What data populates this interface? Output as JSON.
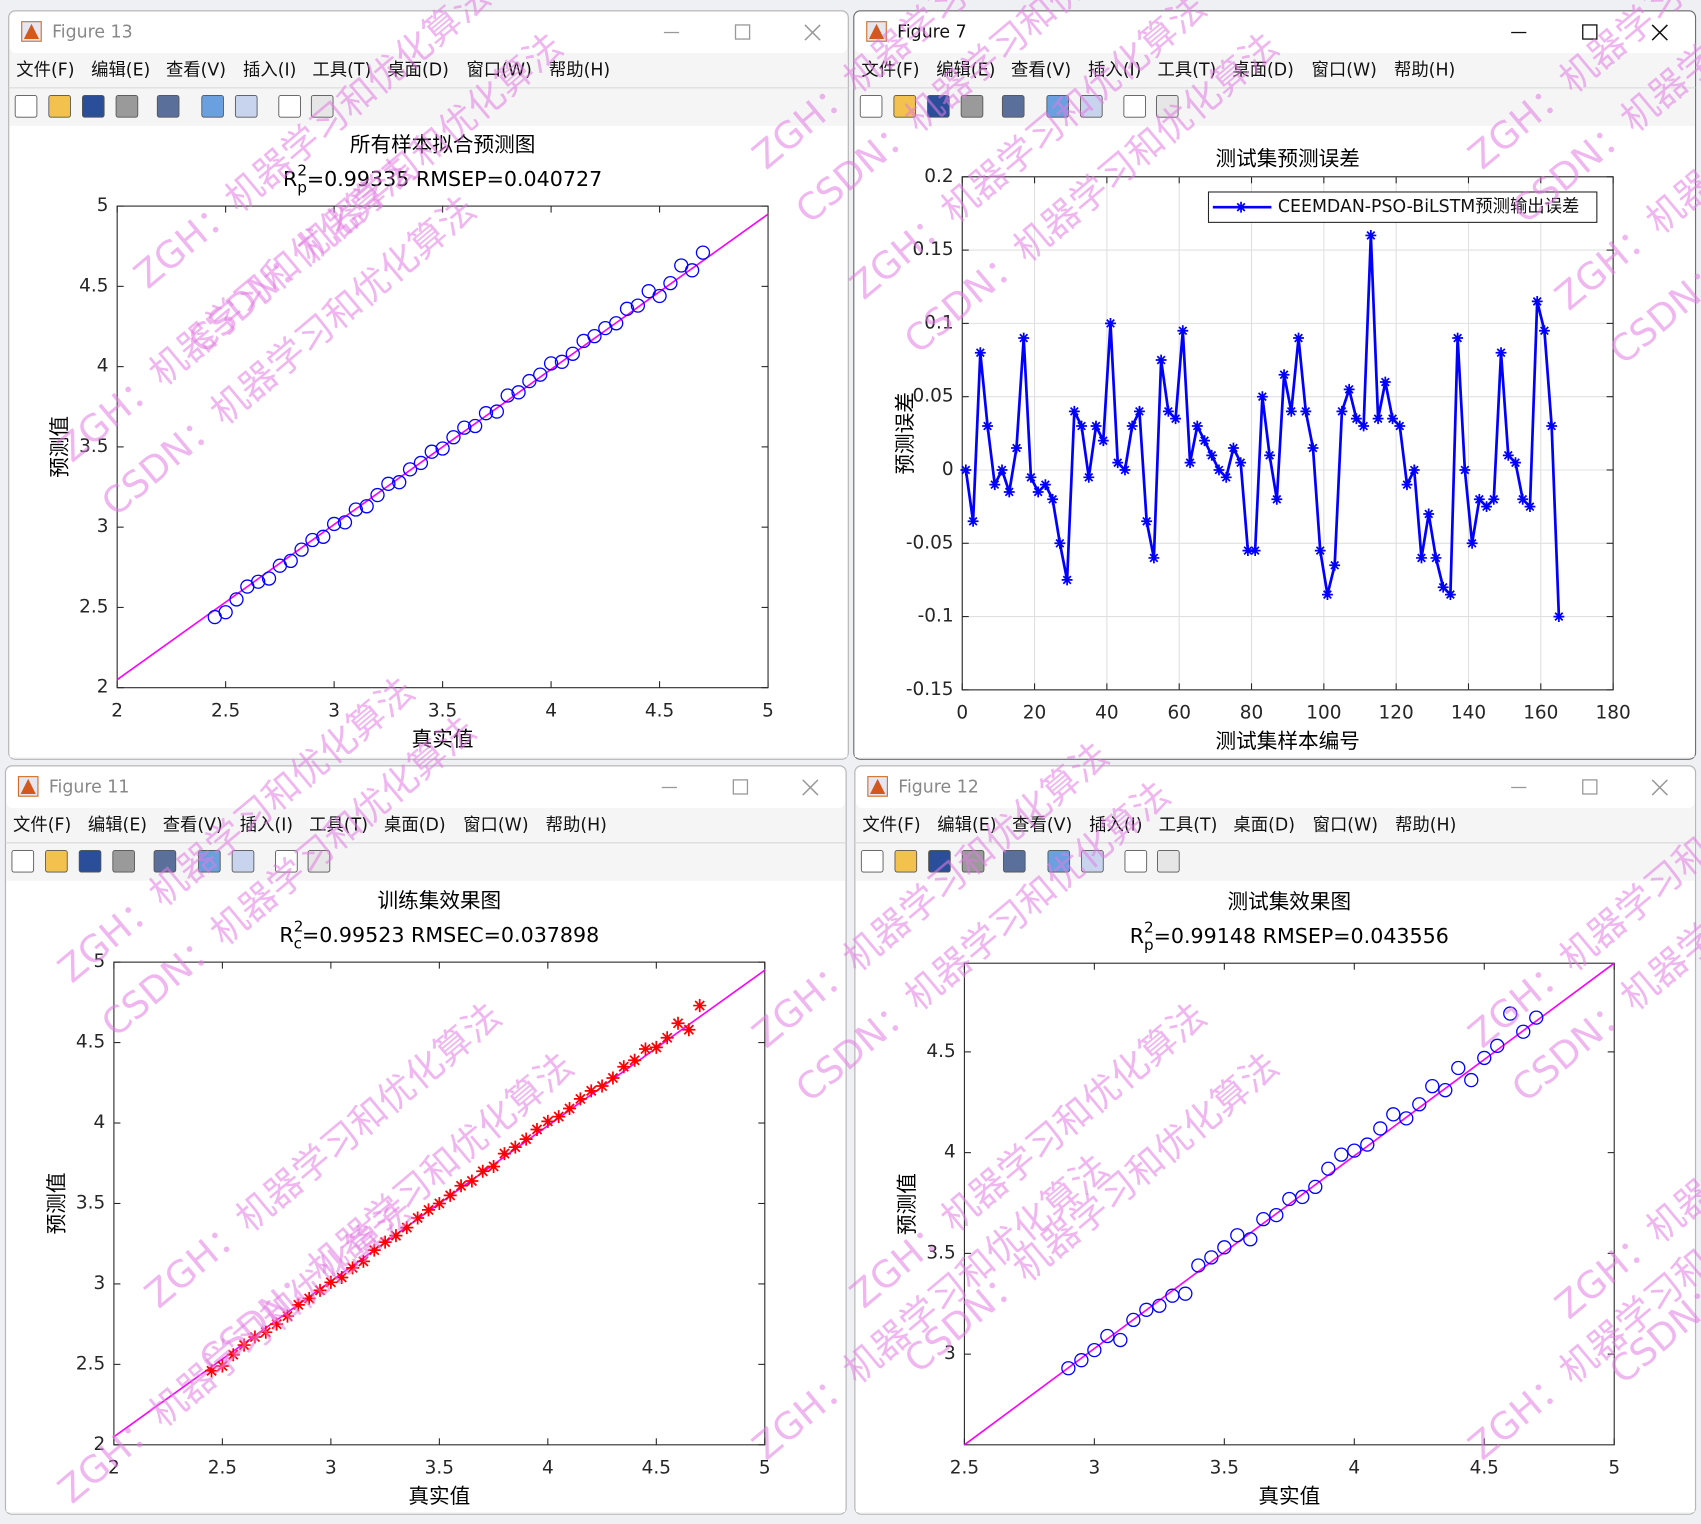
{
  "windows": [
    {
      "title": "Figure 13",
      "active": false
    },
    {
      "title": "Figure 7",
      "active": true
    },
    {
      "title": "Figure 11",
      "active": false
    },
    {
      "title": "Figure 12",
      "active": false
    }
  ],
  "menu": [
    "文件(F)",
    "编辑(E)",
    "查看(V)",
    "插入(I)",
    "工具(T)",
    "桌面(D)",
    "窗口(W)",
    "帮助(H)"
  ],
  "watermarks": [
    "ZGH：机器学习和优化算法",
    "CSDN：机器学习和优化算法"
  ],
  "chart_data": [
    {
      "type": "scatter",
      "title": "所有样本拟合预测图",
      "subtitle": {
        "base": "R",
        "sup": "2",
        "sub": "p",
        "rest": "=0.99335  RMSEP=0.040727"
      },
      "xlabel": "真实值",
      "ylabel": "预测值",
      "xlim": [
        2,
        5
      ],
      "ylim": [
        2,
        5
      ],
      "xticks": [
        2,
        2.5,
        3,
        3.5,
        4,
        4.5,
        5
      ],
      "yticks": [
        2,
        2.5,
        3,
        3.5,
        4,
        4.5,
        5
      ],
      "marker": "o",
      "color": "#0000ff",
      "x": [
        2.45,
        2.5,
        2.55,
        2.6,
        2.65,
        2.7,
        2.75,
        2.8,
        2.85,
        2.9,
        2.95,
        3.0,
        3.05,
        3.1,
        3.15,
        3.2,
        3.25,
        3.3,
        3.35,
        3.4,
        3.45,
        3.5,
        3.55,
        3.6,
        3.65,
        3.7,
        3.75,
        3.8,
        3.85,
        3.9,
        3.95,
        4.0,
        4.05,
        4.1,
        4.15,
        4.2,
        4.25,
        4.3,
        4.35,
        4.4,
        4.45,
        4.5,
        4.55,
        4.6,
        4.65,
        4.7
      ],
      "y": [
        2.44,
        2.47,
        2.55,
        2.63,
        2.66,
        2.68,
        2.76,
        2.79,
        2.86,
        2.92,
        2.94,
        3.02,
        3.03,
        3.11,
        3.13,
        3.2,
        3.27,
        3.28,
        3.36,
        3.4,
        3.47,
        3.49,
        3.56,
        3.62,
        3.63,
        3.71,
        3.72,
        3.82,
        3.84,
        3.91,
        3.95,
        4.02,
        4.03,
        4.08,
        4.16,
        4.19,
        4.24,
        4.27,
        4.36,
        4.38,
        4.47,
        4.44,
        4.52,
        4.63,
        4.6,
        4.71
      ],
      "fit_line": {
        "x": [
          2,
          5
        ],
        "y": [
          2.05,
          4.95
        ],
        "color": "#ff00ff"
      }
    },
    {
      "type": "line",
      "title": "测试集预测误差",
      "xlabel": "测试集样本编号",
      "ylabel": "预测误差",
      "xlim": [
        0,
        180
      ],
      "ylim": [
        -0.15,
        0.2
      ],
      "xticks": [
        0,
        20,
        40,
        60,
        80,
        100,
        120,
        140,
        160,
        180
      ],
      "yticks": [
        -0.15,
        -0.1,
        -0.05,
        0,
        0.05,
        0.1,
        0.15,
        0.2
      ],
      "grid": true,
      "legend": "upper right",
      "x": [
        1,
        3,
        5,
        7,
        9,
        11,
        13,
        15,
        17,
        19,
        21,
        23,
        25,
        27,
        29,
        31,
        33,
        35,
        37,
        39,
        41,
        43,
        45,
        47,
        49,
        51,
        53,
        55,
        57,
        59,
        61,
        63,
        65,
        67,
        69,
        71,
        73,
        75,
        77,
        79,
        81,
        83,
        85,
        87,
        89,
        91,
        93,
        95,
        97,
        99,
        101,
        103,
        105,
        107,
        109,
        111,
        113,
        115,
        117,
        119,
        121,
        123,
        125,
        127,
        129,
        131,
        133,
        135,
        137,
        139,
        141,
        143,
        145,
        147,
        149,
        151,
        153,
        155,
        157,
        159,
        161,
        163,
        165
      ],
      "series": [
        {
          "name": "CEEMDAN-PSO-BiLSTM预测输出误差",
          "color": "#0000ff",
          "marker": "*",
          "values": [
            0,
            -0.035,
            0.08,
            0.03,
            -0.01,
            0,
            -0.015,
            0.015,
            0.09,
            -0.005,
            -0.015,
            -0.01,
            -0.02,
            -0.05,
            -0.075,
            0.04,
            0.03,
            -0.005,
            0.03,
            0.02,
            0.1,
            0.005,
            0,
            0.03,
            0.04,
            -0.035,
            -0.06,
            0.075,
            0.04,
            0.035,
            0.095,
            0.005,
            0.03,
            0.02,
            0.01,
            0,
            -0.005,
            0.015,
            0.005,
            -0.055,
            -0.055,
            0.05,
            0.01,
            -0.02,
            0.065,
            0.04,
            0.09,
            0.04,
            0.015,
            -0.055,
            -0.085,
            -0.065,
            0.04,
            0.055,
            0.035,
            0.03,
            0.16,
            0.035,
            0.06,
            0.035,
            0.03,
            -0.01,
            0,
            -0.06,
            -0.03,
            -0.06,
            -0.08,
            -0.085,
            0.09,
            0,
            -0.05,
            -0.02,
            -0.025,
            -0.02,
            0.08,
            0.01,
            0.005,
            -0.02,
            -0.025,
            0.115,
            0.095,
            0.03,
            -0.1
          ]
        }
      ]
    },
    {
      "type": "scatter",
      "title": "训练集效果图",
      "subtitle": {
        "base": "R",
        "sup": "2",
        "sub": "c",
        "rest": "=0.99523  RMSEC=0.037898"
      },
      "xlabel": "真实值",
      "ylabel": "预测值",
      "xlim": [
        2,
        5
      ],
      "ylim": [
        2,
        5
      ],
      "xticks": [
        2,
        2.5,
        3,
        3.5,
        4,
        4.5,
        5
      ],
      "yticks": [
        2,
        2.5,
        3,
        3.5,
        4,
        4.5,
        5
      ],
      "marker": "*",
      "color": "#ff0000",
      "x": [
        2.45,
        2.5,
        2.55,
        2.6,
        2.65,
        2.7,
        2.75,
        2.8,
        2.85,
        2.9,
        2.95,
        3.0,
        3.05,
        3.1,
        3.15,
        3.2,
        3.25,
        3.3,
        3.35,
        3.4,
        3.45,
        3.5,
        3.55,
        3.6,
        3.65,
        3.7,
        3.75,
        3.8,
        3.85,
        3.9,
        3.95,
        4.0,
        4.05,
        4.1,
        4.15,
        4.2,
        4.25,
        4.3,
        4.35,
        4.4,
        4.45,
        4.5,
        4.55,
        4.6,
        4.65,
        4.7
      ],
      "y": [
        2.46,
        2.49,
        2.56,
        2.62,
        2.67,
        2.7,
        2.75,
        2.8,
        2.87,
        2.91,
        2.96,
        3.01,
        3.04,
        3.1,
        3.14,
        3.21,
        3.26,
        3.3,
        3.35,
        3.41,
        3.46,
        3.5,
        3.55,
        3.61,
        3.64,
        3.7,
        3.73,
        3.81,
        3.85,
        3.9,
        3.96,
        4.01,
        4.04,
        4.09,
        4.15,
        4.2,
        4.23,
        4.28,
        4.35,
        4.39,
        4.46,
        4.47,
        4.53,
        4.62,
        4.58,
        4.73
      ],
      "fit_line": {
        "x": [
          2,
          5
        ],
        "y": [
          2.05,
          4.95
        ],
        "color": "#ff00ff"
      }
    },
    {
      "type": "scatter",
      "title": "测试集效果图",
      "subtitle": {
        "base": "R",
        "sup": "2",
        "sub": "p",
        "rest": "=0.99148  RMSEP=0.043556"
      },
      "xlabel": "真实值",
      "ylabel": "预测值",
      "xlim": [
        2.5,
        5
      ],
      "ylim": [
        2.55,
        4.94
      ],
      "xticks": [
        2.5,
        3,
        3.5,
        4,
        4.5,
        5
      ],
      "yticks": [
        3,
        3.5,
        4,
        4.5
      ],
      "marker": "o",
      "color": "#0000ff",
      "x": [
        2.9,
        2.95,
        3.0,
        3.05,
        3.1,
        3.15,
        3.2,
        3.25,
        3.3,
        3.35,
        3.4,
        3.45,
        3.5,
        3.55,
        3.6,
        3.65,
        3.7,
        3.75,
        3.8,
        3.85,
        3.9,
        3.95,
        4.0,
        4.05,
        4.1,
        4.15,
        4.2,
        4.25,
        4.3,
        4.35,
        4.4,
        4.45,
        4.5,
        4.55,
        4.6,
        4.65,
        4.7
      ],
      "y": [
        2.93,
        2.97,
        3.02,
        3.09,
        3.07,
        3.17,
        3.22,
        3.24,
        3.29,
        3.3,
        3.44,
        3.48,
        3.53,
        3.59,
        3.57,
        3.67,
        3.69,
        3.77,
        3.78,
        3.83,
        3.92,
        3.99,
        4.01,
        4.04,
        4.12,
        4.19,
        4.17,
        4.24,
        4.33,
        4.31,
        4.42,
        4.36,
        4.47,
        4.53,
        4.69,
        4.6,
        4.67
      ],
      "fit_line": {
        "x": [
          2.5,
          5
        ],
        "y": [
          2.55,
          4.94
        ],
        "color": "#ff00ff"
      }
    }
  ]
}
